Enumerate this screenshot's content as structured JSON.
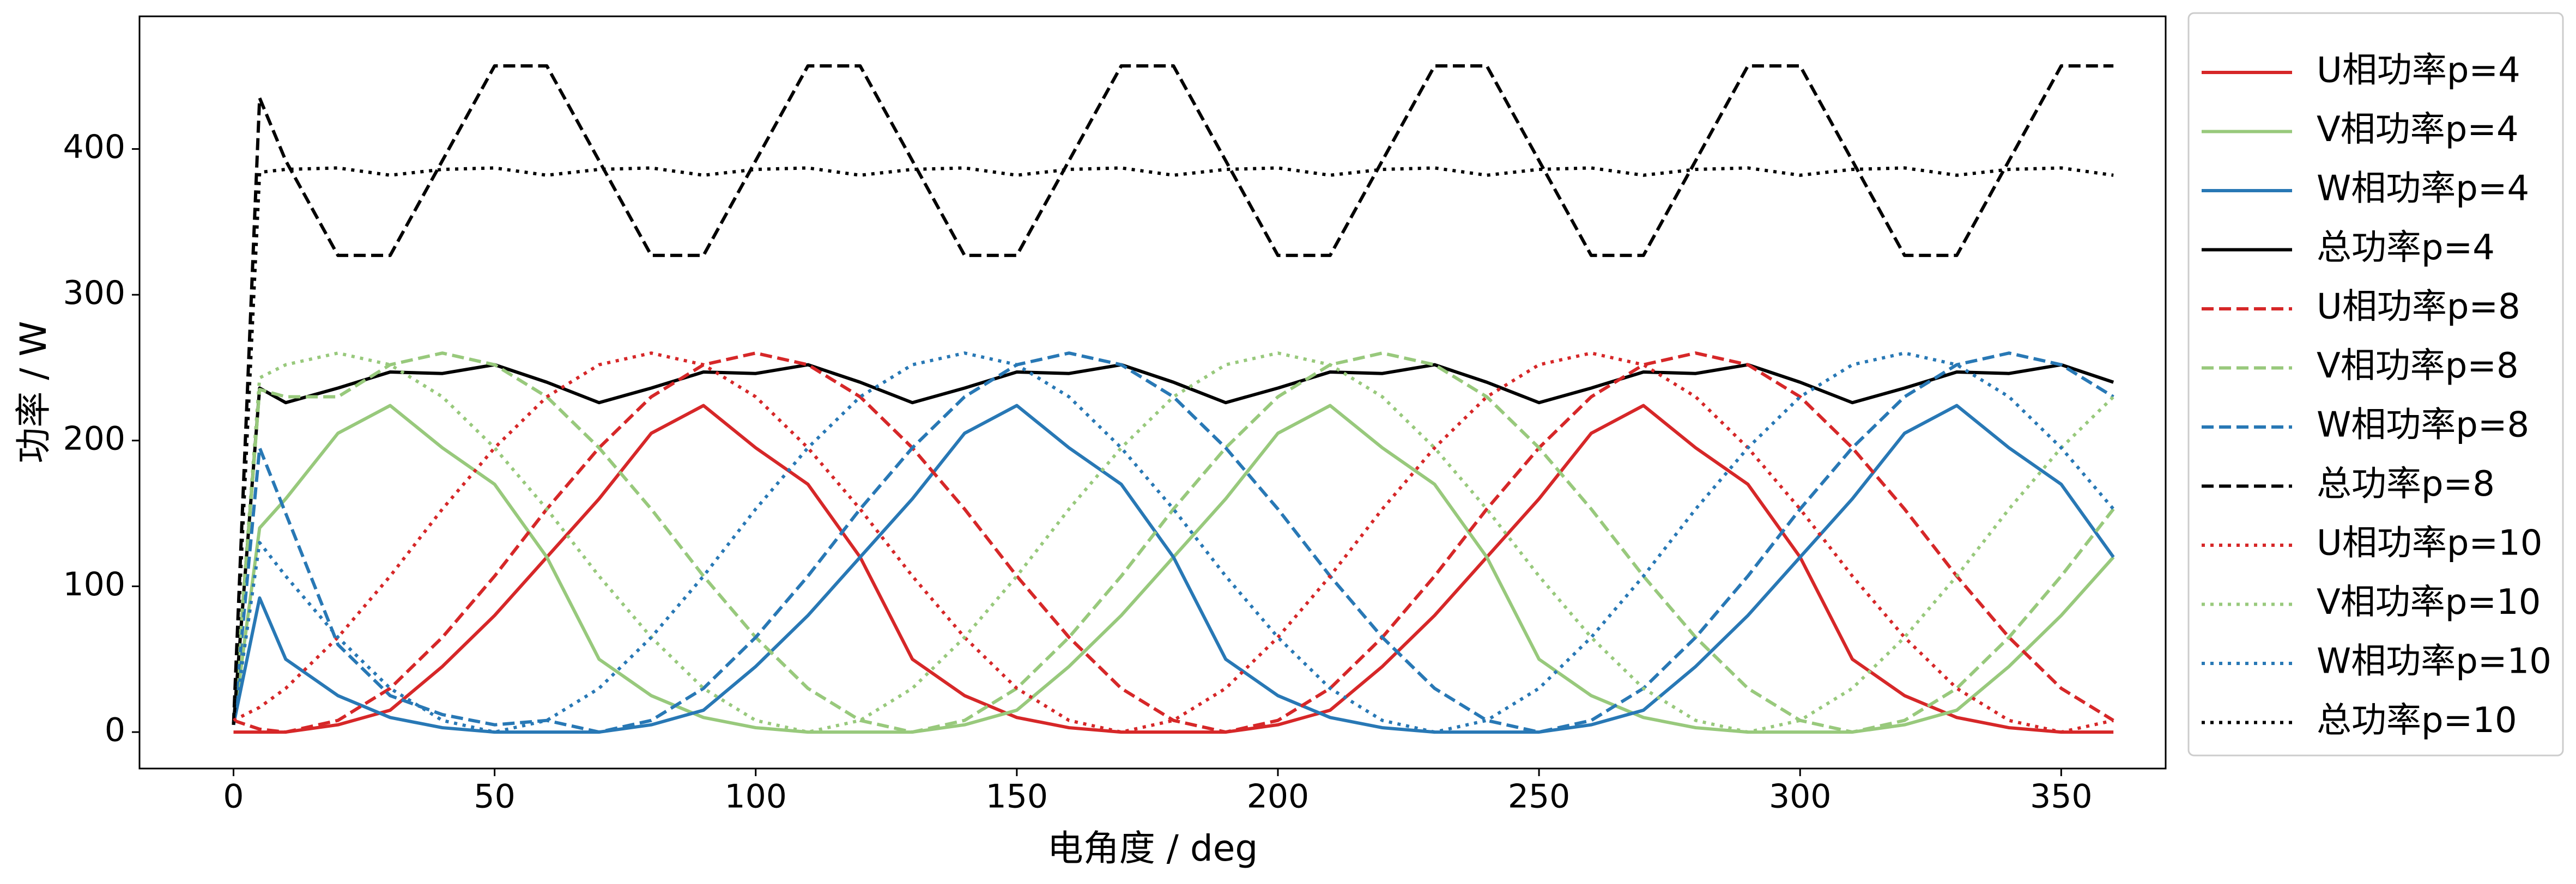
{
  "chart_data": {
    "type": "line",
    "xlabel": "电角度 / deg",
    "ylabel": "功率 / W",
    "xlim": [
      -18,
      370
    ],
    "ylim": [
      -25,
      491
    ],
    "xticks": [
      0,
      50,
      100,
      150,
      200,
      250,
      300,
      350
    ],
    "yticks": [
      0,
      100,
      200,
      300,
      400
    ],
    "grid": false,
    "legend": "outside right",
    "x": [
      0,
      5,
      10,
      20,
      30,
      40,
      50,
      60,
      70,
      80,
      90,
      100,
      110,
      120,
      130,
      140,
      150,
      160,
      170,
      180,
      190,
      200,
      210,
      220,
      230,
      240,
      250,
      260,
      270,
      280,
      290,
      300,
      310,
      320,
      330,
      340,
      350,
      360
    ],
    "series": [
      {
        "name": "U相功率p=4",
        "color": "#d62728",
        "linestyle": "solid",
        "values": [
          0,
          0,
          0,
          5,
          15,
          45,
          80,
          120,
          160,
          205,
          224,
          195,
          170,
          120,
          50,
          25,
          10,
          3,
          0,
          0,
          0,
          5,
          15,
          45,
          80,
          120,
          160,
          205,
          224,
          195,
          170,
          120,
          50,
          25,
          10,
          3,
          0,
          0
        ]
      },
      {
        "name": "V相功率p=4",
        "color": "#98c97c",
        "linestyle": "solid",
        "values": [
          5,
          140,
          160,
          205,
          224,
          195,
          170,
          120,
          50,
          25,
          10,
          3,
          0,
          0,
          0,
          5,
          15,
          45,
          80,
          120,
          160,
          205,
          224,
          195,
          170,
          120,
          50,
          25,
          10,
          3,
          0,
          0,
          0,
          5,
          15,
          45,
          80,
          120
        ]
      },
      {
        "name": "W相功率p=4",
        "color": "#2878b5",
        "linestyle": "solid",
        "values": [
          5,
          92,
          50,
          25,
          10,
          3,
          0,
          0,
          0,
          5,
          15,
          45,
          80,
          120,
          160,
          205,
          224,
          195,
          170,
          120,
          50,
          25,
          10,
          3,
          0,
          0,
          0,
          5,
          15,
          45,
          80,
          120,
          160,
          205,
          224,
          195,
          170,
          120
        ]
      },
      {
        "name": "总功率p=4",
        "color": "#000000",
        "linestyle": "solid",
        "values": [
          5,
          236,
          226,
          236,
          247,
          246,
          252,
          240,
          226,
          236,
          247,
          246,
          252,
          240,
          226,
          236,
          247,
          246,
          252,
          240,
          226,
          236,
          247,
          246,
          252,
          240,
          226,
          236,
          247,
          246,
          252,
          240,
          226,
          236,
          247,
          246,
          252,
          240
        ]
      },
      {
        "name": "U相功率p=8",
        "color": "#d62728",
        "linestyle": "dashed",
        "values": [
          8,
          2,
          0,
          8,
          30,
          65,
          107,
          153,
          195,
          230,
          252,
          260,
          252,
          230,
          195,
          153,
          107,
          65,
          30,
          8,
          0,
          8,
          30,
          65,
          107,
          153,
          195,
          230,
          252,
          260,
          252,
          230,
          195,
          153,
          107,
          65,
          30,
          8
        ]
      },
      {
        "name": "V相功率p=8",
        "color": "#98c97c",
        "linestyle": "dashed",
        "values": [
          5,
          235,
          230,
          230,
          252,
          260,
          252,
          230,
          195,
          153,
          107,
          65,
          30,
          8,
          0,
          8,
          30,
          65,
          107,
          153,
          195,
          230,
          252,
          260,
          252,
          230,
          195,
          153,
          107,
          65,
          30,
          8,
          0,
          8,
          30,
          65,
          107,
          153
        ]
      },
      {
        "name": "W相功率p=8",
        "color": "#2878b5",
        "linestyle": "dashed",
        "values": [
          5,
          195,
          150,
          60,
          25,
          12,
          5,
          8,
          0,
          8,
          30,
          65,
          107,
          153,
          195,
          230,
          252,
          260,
          252,
          230,
          195,
          153,
          107,
          65,
          30,
          8,
          0,
          8,
          30,
          65,
          107,
          153,
          195,
          230,
          252,
          260,
          252,
          230
        ]
      },
      {
        "name": "总功率p=8",
        "color": "#000000",
        "linestyle": "dashed",
        "values": [
          5,
          435,
          392,
          327,
          327,
          392,
          457,
          457,
          392,
          327,
          327,
          392,
          457,
          457,
          392,
          327,
          327,
          392,
          457,
          457,
          392,
          327,
          327,
          392,
          457,
          457,
          392,
          327,
          327,
          392,
          457,
          457,
          392,
          327,
          327,
          392,
          457,
          457
        ]
      },
      {
        "name": "U相功率p=10",
        "color": "#d62728",
        "linestyle": "dotted",
        "values": [
          8,
          17,
          30,
          65,
          107,
          153,
          195,
          230,
          252,
          260,
          252,
          230,
          195,
          153,
          107,
          65,
          30,
          8,
          0,
          8,
          30,
          65,
          107,
          153,
          195,
          230,
          252,
          260,
          252,
          230,
          195,
          153,
          107,
          65,
          30,
          8,
          0,
          8
        ]
      },
      {
        "name": "V相功率p=10",
        "color": "#98c97c",
        "linestyle": "dotted",
        "values": [
          5,
          243,
          252,
          260,
          252,
          230,
          195,
          153,
          107,
          65,
          30,
          8,
          0,
          8,
          30,
          65,
          107,
          153,
          195,
          230,
          252,
          260,
          252,
          230,
          195,
          153,
          107,
          65,
          30,
          8,
          0,
          8,
          30,
          65,
          107,
          153,
          195,
          230
        ]
      },
      {
        "name": "W相功率p=10",
        "color": "#2878b5",
        "linestyle": "dotted",
        "values": [
          5,
          130,
          107,
          65,
          30,
          8,
          0,
          8,
          30,
          65,
          107,
          153,
          195,
          230,
          252,
          260,
          252,
          230,
          195,
          153,
          107,
          65,
          30,
          8,
          0,
          8,
          30,
          65,
          107,
          153,
          195,
          230,
          252,
          260,
          252,
          230,
          195,
          153
        ]
      },
      {
        "name": "总功率p=10",
        "color": "#000000",
        "linestyle": "dotted",
        "values": [
          5,
          384,
          386,
          387,
          382,
          386,
          387,
          382,
          386,
          387,
          382,
          386,
          387,
          382,
          386,
          387,
          382,
          386,
          387,
          382,
          386,
          387,
          382,
          386,
          387,
          382,
          386,
          387,
          382,
          386,
          387,
          382,
          386,
          387,
          382,
          386,
          387,
          382
        ]
      }
    ]
  }
}
